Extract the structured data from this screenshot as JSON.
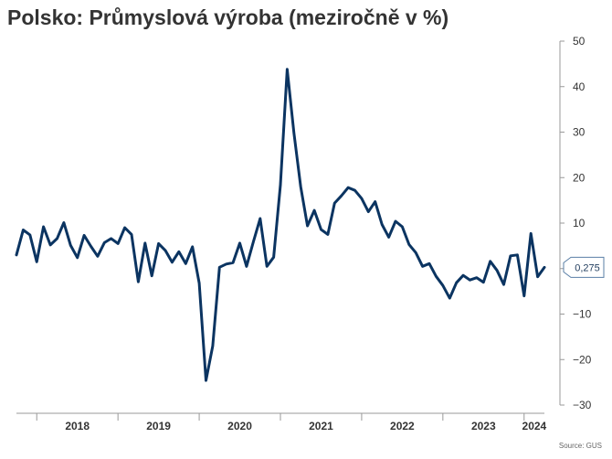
{
  "title": "Polsko: Průmyslová výroba (meziročně v %)",
  "source": "Source: GUS",
  "colors": {
    "line": "#0b3461",
    "axis": "#999999",
    "text": "#333333",
    "callout_border": "#5a7fa6"
  },
  "chart_data": {
    "type": "line",
    "title": "Polsko: Průmyslová výroba (meziročně v %)",
    "xlabel": "",
    "ylabel": "",
    "ylim": [
      -30,
      50
    ],
    "y_ticks": [
      -30,
      -20,
      -10,
      0,
      10,
      20,
      30,
      40,
      50
    ],
    "y_tick_labels": [
      "−30",
      "−20",
      "−10",
      "",
      "10",
      "20",
      "30",
      "40",
      "50"
    ],
    "x_range": [
      "2017-10",
      "2024-04"
    ],
    "x_tick_labels": [
      "2018",
      "2019",
      "2020",
      "2021",
      "2022",
      "2023",
      "2024"
    ],
    "grid": false,
    "last_value_label": "0,275",
    "series": [
      {
        "x": [
          "2017-10",
          "2017-11",
          "2017-12",
          "2018-01",
          "2018-02",
          "2018-03",
          "2018-04",
          "2018-05",
          "2018-06",
          "2018-07",
          "2018-08",
          "2018-09",
          "2018-10",
          "2018-11",
          "2018-12",
          "2019-01",
          "2019-02",
          "2019-03",
          "2019-04",
          "2019-05",
          "2019-06",
          "2019-07",
          "2019-08",
          "2019-09",
          "2019-10",
          "2019-11",
          "2019-12",
          "2020-01",
          "2020-02",
          "2020-03",
          "2020-04",
          "2020-05",
          "2020-06",
          "2020-07",
          "2020-08",
          "2020-09",
          "2020-10",
          "2020-11",
          "2020-12",
          "2021-01",
          "2021-02",
          "2021-03",
          "2021-04",
          "2021-05",
          "2021-06",
          "2021-07",
          "2021-08",
          "2021-09",
          "2021-10",
          "2021-11",
          "2021-12",
          "2022-01",
          "2022-02",
          "2022-03",
          "2022-04",
          "2022-05",
          "2022-06",
          "2022-07",
          "2022-08",
          "2022-09",
          "2022-10",
          "2022-11",
          "2022-12",
          "2023-01",
          "2023-02",
          "2023-03",
          "2023-04",
          "2023-05",
          "2023-06",
          "2023-07",
          "2023-08",
          "2023-09",
          "2023-10",
          "2023-11",
          "2023-12",
          "2024-01",
          "2024-02",
          "2024-03",
          "2024-04"
        ],
        "values": [
          3.0,
          8.5,
          7.4,
          1.5,
          9.2,
          5.2,
          6.6,
          10.1,
          5.1,
          2.4,
          7.3,
          4.9,
          2.7,
          5.7,
          6.6,
          5.5,
          9.0,
          7.5,
          -2.9,
          5.6,
          -1.6,
          5.5,
          4.0,
          1.4,
          3.7,
          1.1,
          4.8,
          -3.2,
          -24.6,
          -17.0,
          0.3,
          1.0,
          1.3,
          5.6,
          0.5,
          5.9,
          11.0,
          0.5,
          2.5,
          18.4,
          43.8,
          29.8,
          18.0,
          9.4,
          12.8,
          8.6,
          7.5,
          14.4,
          16.0,
          17.8,
          17.2,
          15.4,
          12.5,
          14.7,
          9.7,
          6.9,
          10.4,
          9.2,
          5.3,
          3.5,
          0.5,
          1.1,
          -1.7,
          -3.7,
          -6.5,
          -3.1,
          -1.5,
          -2.5,
          -2.0,
          -3.0,
          1.6,
          -0.4,
          -3.5,
          2.8,
          3.0,
          -6.0,
          7.7,
          -1.8,
          0.275
        ]
      }
    ]
  }
}
